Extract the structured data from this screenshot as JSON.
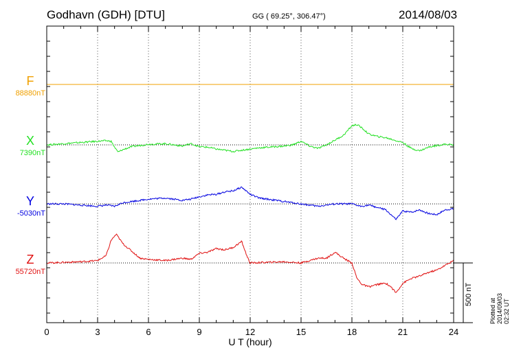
{
  "header": {
    "station": "Godhavn (GDH)  [DTU]",
    "coords": "GG ( 69.25°, 306.47°)",
    "date": "2014/08/03"
  },
  "plotted_note": "Plotted at 2014/09/03 02:32  UT",
  "chart_data": {
    "type": "line",
    "xlabel": "U T (hour)",
    "xlim": [
      0,
      24
    ],
    "x_ticks": [
      "0",
      "3",
      "6",
      "9",
      "12",
      "15",
      "18",
      "21",
      "24"
    ],
    "scale_bar": {
      "label": "500 nT",
      "value_nT": 500
    },
    "series": [
      {
        "name": "F",
        "baseline_label": "88880nT",
        "color": "#f0a000",
        "baseline_offset_px_unused": null,
        "x": [
          0,
          24
        ],
        "y": [
          0,
          0
        ]
      },
      {
        "name": "X",
        "baseline_label": "7390nT",
        "color": "#22e022",
        "x": [
          0,
          1,
          2,
          3,
          3.5,
          3.8,
          4.0,
          4.2,
          4.5,
          5,
          6,
          7,
          8,
          8.5,
          9,
          9.5,
          10,
          10.5,
          11,
          11.5,
          12,
          12.5,
          13,
          14,
          14.5,
          15,
          15.5,
          16,
          16.5,
          17,
          17.5,
          18,
          18.3,
          18.6,
          19,
          19.5,
          20,
          20.5,
          21,
          21.5,
          22,
          22.5,
          23,
          23.5,
          24
        ],
        "y": [
          0,
          10,
          20,
          30,
          35,
          30,
          -20,
          -60,
          -40,
          -15,
          5,
          10,
          -10,
          10,
          -15,
          -20,
          -35,
          -45,
          -55,
          -45,
          -35,
          -25,
          -20,
          -10,
          0,
          30,
          -10,
          -30,
          0,
          40,
          80,
          160,
          170,
          140,
          90,
          70,
          60,
          40,
          20,
          -30,
          -50,
          -20,
          -5,
          5,
          0
        ]
      },
      {
        "name": "Y",
        "baseline_label": "-5030nT",
        "color": "#0000e0",
        "x": [
          0,
          1,
          2,
          3,
          3.5,
          4,
          4.5,
          5,
          6,
          7,
          8,
          8.5,
          9,
          9.5,
          10,
          10.5,
          11,
          11.5,
          12,
          12.5,
          13,
          14,
          15,
          16,
          17,
          18,
          18.5,
          19,
          19.5,
          20,
          20.3,
          20.6,
          21,
          21.5,
          22,
          22.5,
          23,
          23.5,
          24
        ],
        "y": [
          0,
          0,
          -10,
          -20,
          -10,
          -20,
          10,
          20,
          40,
          50,
          30,
          40,
          60,
          75,
          80,
          100,
          110,
          140,
          80,
          50,
          40,
          20,
          0,
          -20,
          0,
          0,
          -20,
          -10,
          -30,
          -50,
          -90,
          -130,
          -60,
          -70,
          -50,
          -80,
          -90,
          -50,
          -40
        ]
      },
      {
        "name": "Z",
        "baseline_label": "55720nT",
        "color": "#e01010",
        "x": [
          0,
          1,
          2,
          3,
          3.5,
          3.8,
          4.1,
          4.5,
          5,
          5.5,
          6,
          7,
          8,
          8.5,
          9,
          9.5,
          10,
          10.5,
          11,
          11.5,
          11.8,
          12,
          13,
          14,
          15,
          15.5,
          16,
          16.5,
          17,
          17.5,
          18,
          18.3,
          18.6,
          19,
          19.5,
          20,
          20.3,
          20.6,
          21,
          21.5,
          22,
          22.5,
          23,
          23.5,
          24
        ],
        "y": [
          0,
          5,
          10,
          20,
          60,
          190,
          240,
          160,
          100,
          40,
          30,
          20,
          40,
          30,
          80,
          90,
          120,
          110,
          130,
          180,
          60,
          0,
          5,
          10,
          0,
          20,
          40,
          40,
          90,
          40,
          0,
          -130,
          -180,
          -200,
          -180,
          -170,
          -200,
          -250,
          -170,
          -130,
          -110,
          -80,
          -60,
          -20,
          20
        ]
      }
    ]
  }
}
